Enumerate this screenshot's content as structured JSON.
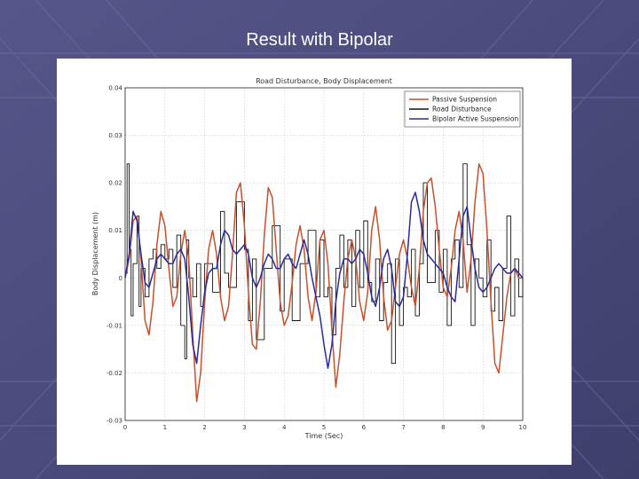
{
  "slide": {
    "title": "Result with Bipolar",
    "background_color": "#4a4a78",
    "panel_color": "#ffffff"
  },
  "chart_data": {
    "type": "line",
    "title": "Road Disturbance, Body Displacement",
    "xlabel": "Time (Sec)",
    "ylabel": "Body Displacement (m)",
    "xlim": [
      0,
      10
    ],
    "ylim": [
      -0.03,
      0.04
    ],
    "xticks": [
      "0",
      "1",
      "2",
      "3",
      "4",
      "5",
      "6",
      "7",
      "8",
      "9",
      "10"
    ],
    "yticks": [
      {
        "v": 0.04,
        "label": "0.04"
      },
      {
        "v": 0.03,
        "label": "0.03"
      },
      {
        "v": 0.02,
        "label": "0.02"
      },
      {
        "v": 0.01,
        "label": "0.01"
      },
      {
        "v": 0.0,
        "label": "0"
      },
      {
        "v": -0.01,
        "label": "-0.01"
      },
      {
        "v": -0.02,
        "label": "-0.02"
      },
      {
        "v": -0.03,
        "label": "-0.03"
      }
    ],
    "grid": true,
    "legend_position": "top-right",
    "series": [
      {
        "name": "Passive Suspension",
        "color": "#c8502a",
        "x": [
          0,
          0.1,
          0.2,
          0.3,
          0.4,
          0.5,
          0.6,
          0.7,
          0.8,
          0.9,
          1.0,
          1.1,
          1.2,
          1.3,
          1.4,
          1.5,
          1.6,
          1.7,
          1.8,
          1.9,
          2.0,
          2.1,
          2.2,
          2.3,
          2.4,
          2.5,
          2.6,
          2.7,
          2.8,
          2.9,
          3.0,
          3.1,
          3.2,
          3.3,
          3.4,
          3.5,
          3.6,
          3.7,
          3.8,
          3.9,
          4.0,
          4.1,
          4.2,
          4.3,
          4.4,
          4.5,
          4.6,
          4.7,
          4.8,
          4.9,
          5.0,
          5.1,
          5.2,
          5.3,
          5.4,
          5.5,
          5.6,
          5.7,
          5.8,
          5.9,
          6.0,
          6.1,
          6.2,
          6.3,
          6.4,
          6.5,
          6.6,
          6.7,
          6.8,
          6.9,
          7.0,
          7.1,
          7.2,
          7.3,
          7.4,
          7.5,
          7.6,
          7.7,
          7.8,
          7.9,
          8.0,
          8.1,
          8.2,
          8.3,
          8.4,
          8.5,
          8.6,
          8.7,
          8.8,
          8.9,
          9.0,
          9.1,
          9.2,
          9.3,
          9.4,
          9.5,
          9.6,
          9.7,
          9.8,
          9.9,
          10.0
        ],
        "y": [
          0.0,
          0.004,
          0.012,
          0.013,
          0.004,
          -0.009,
          -0.012,
          -0.005,
          0.007,
          0.014,
          0.011,
          0.002,
          -0.006,
          -0.004,
          0.005,
          0.01,
          0.004,
          -0.012,
          -0.026,
          -0.02,
          -0.005,
          0.006,
          0.01,
          0.005,
          -0.004,
          -0.009,
          -0.006,
          0.005,
          0.018,
          0.02,
          0.011,
          -0.003,
          -0.014,
          -0.015,
          -0.005,
          0.009,
          0.019,
          0.017,
          0.006,
          -0.005,
          -0.01,
          -0.008,
          -0.001,
          0.007,
          0.011,
          0.006,
          -0.004,
          -0.009,
          -0.003,
          0.008,
          0.01,
          0.003,
          -0.011,
          -0.023,
          -0.016,
          -0.005,
          0.004,
          0.008,
          0.004,
          -0.005,
          -0.009,
          -0.003,
          0.01,
          0.015,
          0.008,
          -0.004,
          -0.011,
          -0.009,
          -0.002,
          0.005,
          0.008,
          0.004,
          -0.002,
          -0.006,
          0.002,
          0.014,
          0.02,
          0.021,
          0.015,
          0.006,
          -0.002,
          -0.004,
          0.002,
          0.01,
          0.014,
          0.008,
          -0.003,
          0.004,
          0.016,
          0.024,
          0.022,
          0.01,
          -0.005,
          -0.018,
          -0.02,
          -0.012,
          -0.004,
          0.001,
          0.002,
          0.0,
          0.0
        ]
      },
      {
        "name": "Road Disturbance",
        "color": "#111111",
        "step": true,
        "x": [
          0,
          0.05,
          0.1,
          0.15,
          0.2,
          0.3,
          0.35,
          0.4,
          0.5,
          0.6,
          0.7,
          0.8,
          0.9,
          1.0,
          1.1,
          1.2,
          1.3,
          1.4,
          1.5,
          1.55,
          1.6,
          1.7,
          1.8,
          1.9,
          2.0,
          2.2,
          2.4,
          2.5,
          2.6,
          2.8,
          3.0,
          3.1,
          3.2,
          3.3,
          3.5,
          3.7,
          3.9,
          4.0,
          4.2,
          4.4,
          4.6,
          4.8,
          4.9,
          5.0,
          5.1,
          5.2,
          5.3,
          5.4,
          5.5,
          5.6,
          5.7,
          5.8,
          5.9,
          6.0,
          6.1,
          6.2,
          6.3,
          6.4,
          6.5,
          6.6,
          6.7,
          6.8,
          6.9,
          7.0,
          7.1,
          7.2,
          7.3,
          7.4,
          7.5,
          7.6,
          7.8,
          7.9,
          8.0,
          8.1,
          8.2,
          8.3,
          8.4,
          8.5,
          8.6,
          8.7,
          8.8,
          8.9,
          9.0,
          9.1,
          9.2,
          9.3,
          9.4,
          9.5,
          9.6,
          9.7,
          9.8,
          9.9,
          10.0
        ],
        "y": [
          0.001,
          0.024,
          0.006,
          -0.008,
          0.003,
          0.013,
          -0.006,
          0.002,
          -0.004,
          0.004,
          0.006,
          0.002,
          0.007,
          0.004,
          0.006,
          -0.002,
          0.009,
          -0.01,
          -0.017,
          0.008,
          0.0,
          -0.004,
          0.003,
          -0.006,
          0.003,
          -0.003,
          0.014,
          0.001,
          -0.002,
          0.016,
          0.006,
          -0.009,
          0.004,
          -0.013,
          0.002,
          0.011,
          -0.007,
          0.004,
          -0.009,
          0.003,
          0.01,
          -0.004,
          0.008,
          -0.004,
          -0.002,
          -0.012,
          0.002,
          0.009,
          -0.002,
          0.008,
          -0.006,
          0.01,
          -0.002,
          0.012,
          -0.001,
          -0.005,
          0.004,
          -0.009,
          -0.001,
          0.003,
          -0.018,
          0.004,
          -0.01,
          -0.002,
          -0.004,
          0.006,
          -0.008,
          0.003,
          0.02,
          -0.001,
          0.01,
          -0.003,
          0.006,
          -0.01,
          0.004,
          0.008,
          -0.002,
          0.024,
          0.007,
          -0.01,
          0.004,
          0.0,
          -0.004,
          0.008,
          -0.007,
          -0.002,
          -0.009,
          0.002,
          0.013,
          -0.008,
          0.004,
          -0.004,
          0.0
        ]
      },
      {
        "name": "Bipolar Active Suspension",
        "color": "#2a2a9a",
        "x": [
          0,
          0.1,
          0.2,
          0.3,
          0.4,
          0.5,
          0.6,
          0.7,
          0.8,
          0.9,
          1.0,
          1.1,
          1.2,
          1.3,
          1.4,
          1.5,
          1.6,
          1.7,
          1.8,
          1.9,
          2.0,
          2.1,
          2.2,
          2.3,
          2.4,
          2.5,
          2.6,
          2.7,
          2.8,
          2.9,
          3.0,
          3.1,
          3.2,
          3.3,
          3.4,
          3.5,
          3.6,
          3.7,
          3.8,
          3.9,
          4.0,
          4.1,
          4.2,
          4.3,
          4.4,
          4.5,
          4.6,
          4.7,
          4.8,
          4.9,
          5.0,
          5.1,
          5.2,
          5.3,
          5.4,
          5.5,
          5.6,
          5.7,
          5.8,
          5.9,
          6.0,
          6.1,
          6.2,
          6.3,
          6.4,
          6.5,
          6.6,
          6.7,
          6.8,
          6.9,
          7.0,
          7.1,
          7.2,
          7.3,
          7.4,
          7.5,
          7.6,
          7.7,
          7.8,
          7.9,
          8.0,
          8.1,
          8.2,
          8.3,
          8.4,
          8.5,
          8.6,
          8.7,
          8.8,
          8.9,
          9.0,
          9.1,
          9.2,
          9.3,
          9.4,
          9.5,
          9.6,
          9.7,
          9.8,
          9.9,
          10.0
        ],
        "y": [
          0.0,
          0.005,
          0.014,
          0.012,
          0.005,
          -0.001,
          -0.002,
          0.001,
          0.004,
          0.005,
          0.004,
          0.003,
          0.003,
          0.005,
          0.006,
          0.004,
          -0.004,
          -0.014,
          -0.018,
          -0.01,
          -0.003,
          0.001,
          0.002,
          0.002,
          0.007,
          0.01,
          0.009,
          0.006,
          0.005,
          0.006,
          0.007,
          0.005,
          0.0,
          -0.002,
          0.0,
          0.003,
          0.005,
          0.004,
          0.002,
          0.002,
          0.004,
          0.005,
          0.003,
          0.002,
          0.005,
          0.008,
          0.005,
          0.0,
          -0.004,
          -0.008,
          -0.014,
          -0.019,
          -0.014,
          -0.005,
          0.001,
          0.004,
          0.004,
          0.003,
          0.004,
          0.006,
          0.005,
          0.001,
          -0.004,
          -0.006,
          -0.002,
          0.004,
          0.006,
          0.002,
          -0.005,
          -0.006,
          -0.004,
          0.005,
          0.016,
          0.018,
          0.014,
          0.008,
          0.005,
          0.004,
          0.003,
          0.002,
          0.001,
          -0.002,
          -0.004,
          -0.005,
          0.004,
          0.013,
          0.015,
          0.008,
          0.002,
          -0.002,
          -0.003,
          -0.002,
          0.0,
          0.002,
          0.003,
          0.002,
          0.001,
          0.001,
          0.002,
          0.001,
          0.0
        ]
      }
    ]
  }
}
